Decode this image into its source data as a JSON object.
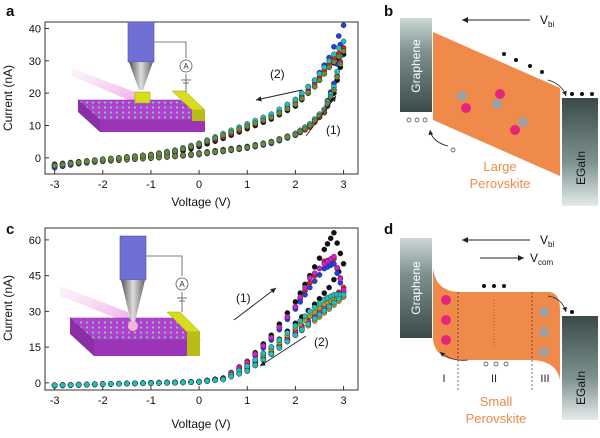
{
  "panels": {
    "a": {
      "letter": "a",
      "ylabel": "Current (nA)",
      "xlabel": "Voltage (V)",
      "xticks": [
        "-3",
        "-2",
        "-1",
        "0",
        "1",
        "2",
        "3"
      ],
      "yticks": [
        "0",
        "10",
        "20",
        "30",
        "40"
      ],
      "sweep_up_label": "(1)",
      "sweep_down_label": "(2)",
      "meter_symbol": "A"
    },
    "b": {
      "letter": "b",
      "field_label": "V",
      "field_sub": "bi",
      "left_electrode": "Graphene",
      "right_electrode": "EGaIn",
      "layer_line1": "Large",
      "layer_line2": "Perovskite"
    },
    "c": {
      "letter": "c",
      "ylabel": "Current (nA)",
      "xlabel": "Voltage (V)",
      "xticks": [
        "-3",
        "-2",
        "-1",
        "0",
        "1",
        "2",
        "3"
      ],
      "yticks": [
        "0",
        "15",
        "30",
        "45",
        "60"
      ],
      "sweep_up_label": "(1)",
      "sweep_down_label": "(2)",
      "meter_symbol": "A"
    },
    "d": {
      "letter": "d",
      "field_label": "V",
      "field_sub": "bi",
      "com_label": "V",
      "com_sub": "com",
      "left_electrode": "Graphene",
      "right_electrode": "EGaIn",
      "layer_line1": "Small",
      "layer_line2": "Perovskite",
      "region_labels": [
        "I",
        "II",
        "III"
      ]
    }
  },
  "colors": {
    "perovskite": "#f08a4b",
    "label_orange": "#f08a4b",
    "electrode_dark": "#3a4a48",
    "electrode_light": "#d9e2e0",
    "cation": "#e5267c",
    "anion": "#9aa0a4",
    "tip": "#6f6fd6",
    "substrate": "#b13fd1",
    "contact": "#d7dc1d"
  },
  "chart_data": [
    {
      "type": "scatter",
      "panel": "a",
      "xlabel": "Voltage (V)",
      "ylabel": "Current (nA)",
      "xlim": [
        -3.2,
        3.3
      ],
      "ylim": [
        -5,
        42
      ],
      "series": [
        {
          "color": "#111111",
          "x": [
            -3,
            -2.5,
            -2,
            -1.5,
            -1,
            -0.5,
            0,
            0.5,
            1,
            1.5,
            2,
            2.3,
            2.6,
            2.8,
            3,
            2.7,
            2.4,
            2,
            1.5,
            1,
            0.5,
            0,
            -0.5,
            -1,
            -1.5,
            -2,
            -2.5,
            -3
          ],
          "y": [
            -2,
            -1.3,
            -0.8,
            -0.4,
            0,
            0.5,
            1.5,
            2.5,
            3.5,
            5,
            7.5,
            10,
            14,
            20,
            32,
            28,
            22,
            16,
            12,
            9,
            6,
            3.5,
            1.5,
            0.5,
            0,
            -0.5,
            -1.2,
            -2
          ]
        },
        {
          "color": "#e02020",
          "x": [
            -3,
            -2.5,
            -2,
            -1.5,
            -1,
            -0.5,
            0,
            0.5,
            1,
            1.5,
            2,
            2.3,
            2.6,
            2.8,
            3,
            2.7,
            2.4,
            2,
            1.5,
            1,
            0.5,
            0,
            -0.5,
            -1,
            -1.5,
            -2,
            -2.5,
            -3
          ],
          "y": [
            -2.5,
            -1.6,
            -1,
            -0.5,
            0,
            0.6,
            1.2,
            2,
            3,
            4.5,
            7,
            9.5,
            14,
            21,
            34,
            29,
            23,
            17,
            12.5,
            9.5,
            6.5,
            4,
            2,
            0.8,
            0.2,
            -0.6,
            -1.5,
            -2.5
          ]
        },
        {
          "color": "#2040e0",
          "x": [
            -3,
            -2.5,
            -2,
            -1.5,
            -1,
            -0.5,
            0,
            0.5,
            1,
            1.5,
            2,
            2.3,
            2.6,
            2.8,
            3,
            2.7,
            2.4,
            2,
            1.5,
            1,
            0.5,
            0,
            -0.5,
            -1,
            -1.5,
            -2,
            -2.5,
            -3
          ],
          "y": [
            -3,
            -1.8,
            -1.1,
            -0.6,
            -0.1,
            0.4,
            1,
            2,
            3,
            4.5,
            7,
            10,
            15,
            23,
            41,
            31,
            24,
            18,
            13,
            10,
            7,
            4,
            2.2,
            1,
            0.3,
            -0.6,
            -1.7,
            -3
          ]
        },
        {
          "color": "#20c0c0",
          "x": [
            -3,
            -2.5,
            -2,
            -1.5,
            -1,
            -0.5,
            0,
            0.5,
            1,
            1.5,
            2,
            2.3,
            2.6,
            2.8,
            3,
            2.7,
            2.4,
            2,
            1.5,
            1,
            0.5,
            0,
            -0.5,
            -1,
            -1.5,
            -2,
            -2.5,
            -3
          ],
          "y": [
            -2.2,
            -1.5,
            -0.9,
            -0.4,
            0.1,
            0.6,
            1.4,
            2.2,
            3.3,
            5,
            7.5,
            10.5,
            15,
            22,
            36,
            30,
            24,
            18,
            13.5,
            10.5,
            7.5,
            4.5,
            2.4,
            1,
            0.2,
            -0.4,
            -1.3,
            -2.2
          ]
        },
        {
          "color": "#6a8a3a",
          "x": [
            -3,
            -2.5,
            -2,
            -1.5,
            -1,
            -0.5,
            0,
            0.5,
            1,
            1.5,
            2,
            2.3,
            2.6,
            2.8,
            3,
            2.7,
            2.4,
            2,
            1.5,
            1,
            0.5,
            0,
            -0.5,
            -1,
            -1.5,
            -2,
            -2.5,
            -3
          ],
          "y": [
            -2.4,
            -1.5,
            -0.9,
            -0.5,
            0,
            0.5,
            1.3,
            2.2,
            3.2,
            4.8,
            7.2,
            10,
            14.5,
            21,
            33,
            28,
            22,
            16.5,
            12.5,
            9.8,
            7,
            4.2,
            2.1,
            0.9,
            0.2,
            -0.5,
            -1.4,
            -2.4
          ]
        }
      ]
    },
    {
      "type": "scatter",
      "panel": "c",
      "xlabel": "Voltage (V)",
      "ylabel": "Current (nA)",
      "xlim": [
        -3.2,
        3.3
      ],
      "ylim": [
        -3,
        65
      ],
      "series": [
        {
          "color": "#111111",
          "x": [
            -3,
            -2.5,
            -2,
            -1.5,
            -1,
            -0.5,
            0,
            0.5,
            1,
            1.5,
            2,
            2.3,
            2.6,
            2.8,
            3,
            2.7,
            2.4,
            2,
            1.5,
            1,
            0.5,
            0,
            -0.5,
            -1,
            -1.5,
            -2,
            -2.5,
            -3
          ],
          "y": [
            -1,
            -0.8,
            -0.5,
            -0.3,
            0,
            0.2,
            0.4,
            1.5,
            9,
            20,
            34,
            45,
            56,
            63,
            50,
            40,
            33,
            25,
            15,
            7,
            2,
            0.4,
            0.1,
            -0.1,
            -0.3,
            -0.5,
            -0.8,
            -1
          ]
        },
        {
          "color": "#e02020",
          "x": [
            -3,
            -2.5,
            -2,
            -1.5,
            -1,
            -0.5,
            0,
            0.5,
            1,
            1.5,
            2,
            2.3,
            2.6,
            2.8,
            3,
            2.7,
            2.4,
            2,
            1.5,
            1,
            0.5,
            0,
            -0.5,
            -1,
            -1.5,
            -2,
            -2.5,
            -3
          ],
          "y": [
            -1,
            -0.7,
            -0.5,
            -0.3,
            0,
            0.2,
            0.5,
            2,
            9,
            19,
            32,
            42,
            51,
            52,
            40,
            34,
            28,
            22,
            13,
            6,
            1.8,
            0.4,
            0.1,
            -0.1,
            -0.3,
            -0.5,
            -0.7,
            -1
          ]
        },
        {
          "color": "#2040e0",
          "x": [
            -3,
            -2.5,
            -2,
            -1.5,
            -1,
            -0.5,
            0,
            0.5,
            1,
            1.5,
            2,
            2.3,
            2.6,
            2.8,
            3,
            2.7,
            2.4,
            2,
            1.5,
            1,
            0.5,
            0,
            -0.5,
            -1,
            -1.5,
            -2,
            -2.5,
            -3
          ],
          "y": [
            -1.2,
            -0.9,
            -0.6,
            -0.3,
            0,
            0.2,
            0.5,
            1.8,
            8,
            18,
            31,
            40,
            48,
            50,
            38,
            33,
            27,
            21,
            12,
            5,
            1.5,
            0.4,
            0.1,
            -0.1,
            -0.3,
            -0.6,
            -0.9,
            -1.2
          ]
        },
        {
          "color": "#d020d0",
          "x": [
            -3,
            -2.5,
            -2,
            -1.5,
            -1,
            -0.5,
            0,
            0.5,
            1,
            1.5,
            2,
            2.3,
            2.6,
            2.8,
            3,
            2.7,
            2.4,
            2,
            1.5,
            1,
            0.5,
            0,
            -0.5,
            -1,
            -1.5,
            -2,
            -2.5,
            -3
          ],
          "y": [
            -1,
            -0.8,
            -0.5,
            -0.3,
            0,
            0.2,
            0.5,
            1.9,
            8.5,
            19,
            32,
            44,
            50,
            53,
            39,
            34,
            28,
            21,
            12.5,
            5.5,
            1.6,
            0.4,
            0.1,
            -0.1,
            -0.3,
            -0.5,
            -0.8,
            -1
          ]
        },
        {
          "color": "#b0a020",
          "x": [
            -3,
            -2.5,
            -2,
            -1.5,
            -1,
            -0.5,
            0,
            0.5,
            1,
            1.5,
            2,
            2.3,
            2.6,
            2.8,
            3,
            2.7,
            2.4,
            2,
            1.5,
            1,
            0.5,
            0,
            -0.5,
            -1,
            -1.5,
            -2,
            -2.5,
            -3
          ],
          "y": [
            -1,
            -0.8,
            -0.5,
            -0.3,
            0,
            0.2,
            0.5,
            1.6,
            7,
            14,
            23,
            28,
            33,
            35,
            36,
            31,
            26,
            20,
            12,
            5,
            1.5,
            0.4,
            0.1,
            -0.1,
            -0.3,
            -0.5,
            -0.8,
            -1
          ]
        },
        {
          "color": "#20c0c0",
          "x": [
            -3,
            -2.5,
            -2,
            -1.5,
            -1,
            -0.5,
            0,
            0.5,
            1,
            1.5,
            2,
            2.3,
            2.6,
            2.8,
            3,
            2.7,
            2.4,
            2,
            1.5,
            1,
            0.5,
            0,
            -0.5,
            -1,
            -1.5,
            -2,
            -2.5,
            -3
          ],
          "y": [
            -1,
            -0.8,
            -0.5,
            -0.3,
            0,
            0.2,
            0.4,
            1.5,
            7,
            15,
            24,
            30,
            35,
            37,
            37,
            32,
            27,
            20,
            12,
            5,
            1.4,
            0.4,
            0.1,
            -0.1,
            -0.3,
            -0.5,
            -0.8,
            -1
          ]
        }
      ]
    }
  ]
}
